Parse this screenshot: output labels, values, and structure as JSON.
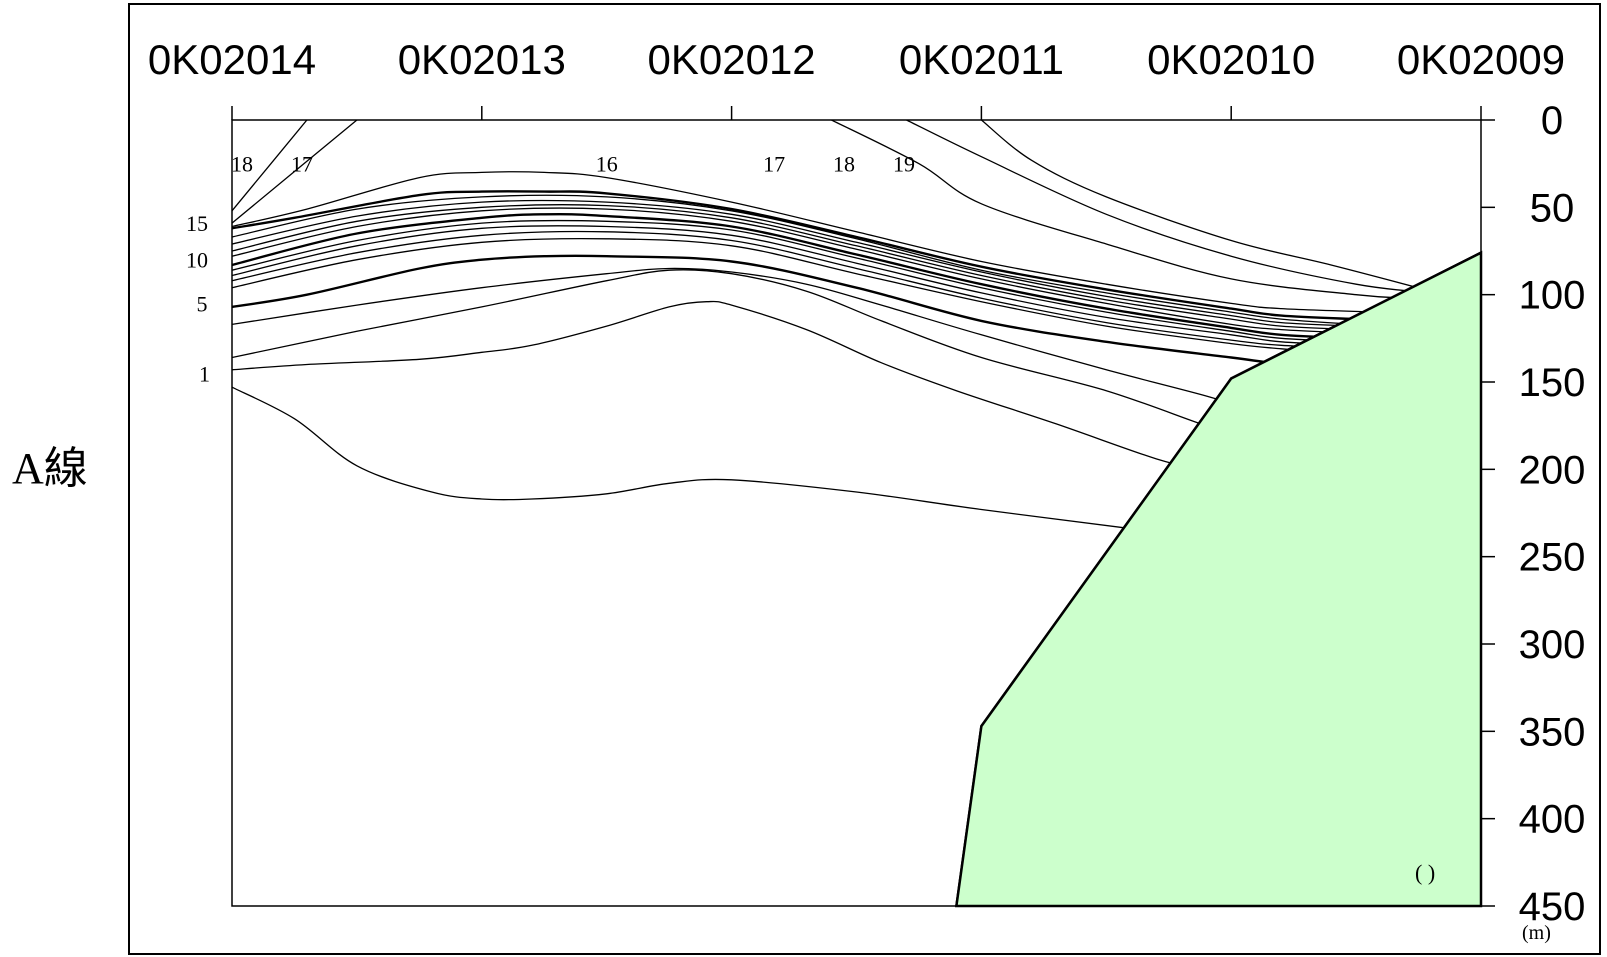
{
  "side_label": "A線",
  "unit_label": "(m)",
  "note": "( )",
  "colors": {
    "line": "#000000",
    "fill": "#ccffcc"
  },
  "chart_data": {
    "type": "line",
    "title": "",
    "xlabel": "",
    "ylabel": "",
    "stations": [
      "0K02014",
      "0K02013",
      "0K02012",
      "0K02011",
      "0K02010",
      "0K02009"
    ],
    "ylim": [
      0,
      450
    ],
    "yticks": [
      0,
      50,
      100,
      150,
      200,
      250,
      300,
      350,
      400,
      450
    ],
    "y_inverted": true,
    "bottom_region": [
      [
        2.9,
        450
      ],
      [
        3.0,
        347
      ],
      [
        4.0,
        148
      ],
      [
        5.0,
        76
      ],
      [
        5.0,
        450
      ]
    ],
    "isolines": [
      {
        "label": "1",
        "bold": false,
        "points": [
          [
            0,
            153
          ],
          [
            0.25,
            171
          ],
          [
            0.5,
            198
          ],
          [
            0.8,
            213
          ],
          [
            1.0,
            217
          ],
          [
            1.2,
            217
          ],
          [
            1.5,
            214
          ],
          [
            1.75,
            208
          ],
          [
            2.0,
            206
          ],
          [
            2.5,
            213
          ],
          [
            3.0,
            223
          ],
          [
            3.6,
            234
          ]
        ]
      },
      {
        "label": "",
        "bold": false,
        "points": [
          [
            0,
            143
          ],
          [
            0.3,
            140
          ],
          [
            0.75,
            137
          ],
          [
            1.0,
            133
          ],
          [
            1.2,
            129
          ],
          [
            1.5,
            118
          ],
          [
            1.75,
            107
          ],
          [
            1.9,
            104
          ],
          [
            2.0,
            106
          ],
          [
            2.3,
            120
          ],
          [
            2.6,
            139
          ],
          [
            2.9,
            155
          ],
          [
            3.3,
            174
          ],
          [
            3.7,
            194
          ],
          [
            3.9,
            201
          ]
        ]
      },
      {
        "label": "",
        "bold": false,
        "points": [
          [
            0,
            136
          ],
          [
            0.5,
            121
          ],
          [
            1.0,
            107
          ],
          [
            1.5,
            92
          ],
          [
            1.75,
            86
          ],
          [
            2.0,
            88
          ],
          [
            2.3,
            98
          ],
          [
            2.6,
            115
          ],
          [
            3.0,
            136
          ],
          [
            3.5,
            155
          ],
          [
            3.9,
            175
          ],
          [
            4.0,
            178
          ]
        ]
      },
      {
        "label": "",
        "bold": false,
        "points": [
          [
            0,
            117
          ],
          [
            0.5,
            106
          ],
          [
            1.0,
            96
          ],
          [
            1.5,
            88
          ],
          [
            1.75,
            85
          ],
          [
            2.0,
            87
          ],
          [
            2.3,
            94
          ],
          [
            2.6,
            106
          ],
          [
            3.0,
            123
          ],
          [
            3.5,
            143
          ],
          [
            3.9,
            158
          ],
          [
            4.05,
            165
          ]
        ]
      },
      {
        "label": "5",
        "bold": true,
        "points": [
          [
            0,
            107
          ],
          [
            0.3,
            100
          ],
          [
            0.75,
            85
          ],
          [
            1.0,
            80
          ],
          [
            1.25,
            78
          ],
          [
            1.5,
            78
          ],
          [
            2.0,
            81
          ],
          [
            2.5,
            96
          ],
          [
            3.0,
            115
          ],
          [
            3.5,
            127
          ],
          [
            4.0,
            136
          ],
          [
            4.2,
            140
          ],
          [
            4.3,
            143
          ]
        ]
      },
      {
        "label": "",
        "bold": false,
        "points": [
          [
            0,
            96
          ],
          [
            0.5,
            80
          ],
          [
            1.0,
            70
          ],
          [
            1.5,
            68
          ],
          [
            2.0,
            72
          ],
          [
            2.5,
            88
          ],
          [
            3.0,
            104
          ],
          [
            3.5,
            118
          ],
          [
            4.0,
            128
          ],
          [
            4.2,
            131
          ],
          [
            4.3,
            132
          ]
        ]
      },
      {
        "label": "",
        "bold": false,
        "points": [
          [
            0,
            92
          ],
          [
            0.5,
            76
          ],
          [
            1.0,
            66
          ],
          [
            1.5,
            64
          ],
          [
            2.0,
            69
          ],
          [
            2.5,
            85
          ],
          [
            3.0,
            102
          ],
          [
            3.5,
            116
          ],
          [
            4.0,
            126
          ],
          [
            4.2,
            129
          ],
          [
            4.4,
            130
          ]
        ]
      },
      {
        "label": "",
        "bold": false,
        "points": [
          [
            0,
            89
          ],
          [
            0.5,
            72
          ],
          [
            1.0,
            62
          ],
          [
            1.5,
            61
          ],
          [
            2.0,
            66
          ],
          [
            2.5,
            82
          ],
          [
            3.0,
            99
          ],
          [
            3.5,
            113
          ],
          [
            4.0,
            123
          ],
          [
            4.2,
            127
          ],
          [
            4.5,
            129
          ]
        ]
      },
      {
        "label": "",
        "bold": false,
        "points": [
          [
            0,
            86
          ],
          [
            0.5,
            69
          ],
          [
            1.0,
            59
          ],
          [
            1.5,
            58
          ],
          [
            2.0,
            63
          ],
          [
            2.5,
            79
          ],
          [
            3.0,
            96
          ],
          [
            3.5,
            110
          ],
          [
            4.0,
            121
          ],
          [
            4.2,
            125
          ],
          [
            4.5,
            127
          ]
        ]
      },
      {
        "label": "10",
        "bold": true,
        "points": [
          [
            0,
            83
          ],
          [
            0.5,
            65
          ],
          [
            1.0,
            56
          ],
          [
            1.25,
            54
          ],
          [
            1.5,
            55
          ],
          [
            2.0,
            61
          ],
          [
            2.5,
            77
          ],
          [
            3.0,
            94
          ],
          [
            3.5,
            108
          ],
          [
            4.0,
            119
          ],
          [
            4.2,
            123
          ],
          [
            4.5,
            125
          ]
        ]
      },
      {
        "label": "",
        "bold": false,
        "points": [
          [
            0,
            78
          ],
          [
            0.5,
            61
          ],
          [
            1.0,
            52
          ],
          [
            1.5,
            51
          ],
          [
            2.0,
            58
          ],
          [
            2.5,
            74
          ],
          [
            3.0,
            91
          ],
          [
            3.5,
            105
          ],
          [
            4.0,
            117
          ],
          [
            4.2,
            120
          ],
          [
            4.5,
            122
          ]
        ]
      },
      {
        "label": "",
        "bold": false,
        "points": [
          [
            0,
            75
          ],
          [
            0.5,
            58
          ],
          [
            1.0,
            50
          ],
          [
            1.5,
            49
          ],
          [
            2.0,
            56
          ],
          [
            2.5,
            72
          ],
          [
            3.0,
            89
          ],
          [
            3.5,
            103
          ],
          [
            4.0,
            114
          ],
          [
            4.2,
            118
          ],
          [
            4.5,
            120
          ]
        ]
      },
      {
        "label": "",
        "bold": false,
        "points": [
          [
            0,
            71
          ],
          [
            0.5,
            55
          ],
          [
            1.0,
            47
          ],
          [
            1.5,
            47
          ],
          [
            2.0,
            54
          ],
          [
            2.5,
            70
          ],
          [
            3.0,
            87
          ],
          [
            3.5,
            101
          ],
          [
            4.0,
            112
          ],
          [
            4.2,
            116
          ],
          [
            4.5,
            118
          ]
        ]
      },
      {
        "label": "",
        "bold": false,
        "points": [
          [
            0,
            67
          ],
          [
            0.5,
            51
          ],
          [
            1.0,
            44
          ],
          [
            1.5,
            44
          ],
          [
            2.0,
            52
          ],
          [
            2.5,
            68
          ],
          [
            3.0,
            86
          ],
          [
            3.5,
            99
          ],
          [
            4.0,
            110
          ],
          [
            4.2,
            114
          ],
          [
            4.5,
            117
          ]
        ]
      },
      {
        "label": "15",
        "bold": true,
        "points": [
          [
            0,
            62
          ],
          [
            0.25,
            56
          ],
          [
            0.75,
            43
          ],
          [
            1.0,
            41
          ],
          [
            1.25,
            41
          ],
          [
            1.5,
            42
          ],
          [
            2.0,
            51
          ],
          [
            2.5,
            67
          ],
          [
            3.0,
            84
          ],
          [
            3.5,
            97
          ],
          [
            4.0,
            108
          ],
          [
            4.2,
            112
          ],
          [
            4.5,
            114
          ]
        ]
      },
      {
        "label": "16",
        "bold": false,
        "points": [
          [
            0,
            61
          ],
          [
            0.3,
            51
          ],
          [
            0.75,
            33
          ],
          [
            1.0,
            30
          ],
          [
            1.25,
            30
          ],
          [
            1.5,
            33
          ],
          [
            2.0,
            47
          ],
          [
            2.5,
            64
          ],
          [
            3.0,
            81
          ],
          [
            3.5,
            94
          ],
          [
            4.0,
            105
          ],
          [
            4.2,
            108
          ],
          [
            4.6,
            110
          ]
        ]
      },
      {
        "label": "17",
        "bold": false,
        "points": [
          [
            0.0,
            59
          ],
          [
            0.5,
            0
          ]
        ]
      },
      {
        "label": "18",
        "bold": false,
        "points": [
          [
            0.0,
            52
          ],
          [
            0.3,
            0
          ]
        ]
      },
      {
        "label": "17",
        "bold": false,
        "points": [
          [
            2.4,
            0
          ],
          [
            2.75,
            25
          ],
          [
            3.0,
            48
          ],
          [
            3.5,
            71
          ],
          [
            4.0,
            91
          ],
          [
            4.5,
            100
          ],
          [
            4.7,
            102
          ]
        ]
      },
      {
        "label": "18",
        "bold": false,
        "points": [
          [
            2.7,
            0
          ],
          [
            3.0,
            21
          ],
          [
            3.5,
            54
          ],
          [
            4.0,
            78
          ],
          [
            4.5,
            94
          ],
          [
            4.8,
            99
          ]
        ]
      },
      {
        "label": "19",
        "bold": false,
        "points": [
          [
            3.0,
            0
          ],
          [
            3.2,
            23
          ],
          [
            3.5,
            44
          ],
          [
            4.0,
            69
          ],
          [
            4.4,
            83
          ],
          [
            4.8,
            98
          ]
        ]
      }
    ],
    "isoline_labels": [
      {
        "text": "18",
        "x": 0.04,
        "y": 25
      },
      {
        "text": "17",
        "x": 0.28,
        "y": 25
      },
      {
        "text": "16",
        "x": 1.5,
        "y": 25
      },
      {
        "text": "17",
        "x": 2.17,
        "y": 25
      },
      {
        "text": "18",
        "x": 2.45,
        "y": 25
      },
      {
        "text": "19",
        "x": 2.69,
        "y": 25
      },
      {
        "text": "15",
        "x": -0.14,
        "y": 59
      },
      {
        "text": "10",
        "x": -0.14,
        "y": 80
      },
      {
        "text": "5",
        "x": -0.12,
        "y": 105
      },
      {
        "text": "1",
        "x": -0.11,
        "y": 145
      }
    ]
  }
}
